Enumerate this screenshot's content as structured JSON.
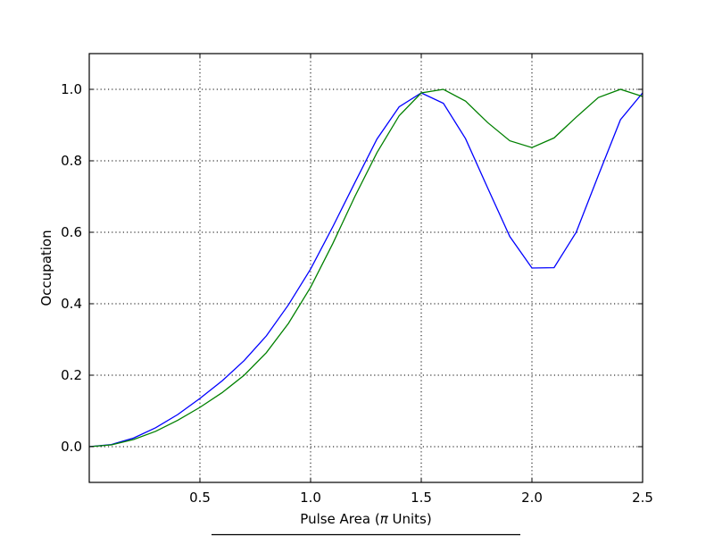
{
  "chart_data": {
    "type": "line",
    "title": "",
    "xlabel": "Pulse Area (",
    "xlabel_symbol": "π",
    "xlabel_suffix": " Units)",
    "ylabel": "Occupation",
    "xlim": [
      0.0,
      2.5
    ],
    "ylim": [
      -0.1,
      1.1
    ],
    "xticks": [
      0.5,
      1.0,
      1.5,
      2.0,
      2.5
    ],
    "xtick_labels": [
      "0.5",
      "1.0",
      "1.5",
      "2.0",
      "2.5"
    ],
    "yticks": [
      0.0,
      0.2,
      0.4,
      0.6,
      0.8,
      1.0
    ],
    "ytick_labels": [
      "0.0",
      "0.2",
      "0.4",
      "0.6",
      "0.8",
      "1.0"
    ],
    "grid": true,
    "x": [
      0.0,
      0.1,
      0.2,
      0.3,
      0.4,
      0.5,
      0.6,
      0.7,
      0.8,
      0.9,
      1.0,
      1.1,
      1.2,
      1.3,
      1.4,
      1.5,
      1.6,
      1.7,
      1.8,
      1.9,
      2.0,
      2.1,
      2.2,
      2.3,
      2.4,
      2.5
    ],
    "series": [
      {
        "color": "#0000ff",
        "values": [
          0.0,
          0.006,
          0.024,
          0.053,
          0.09,
          0.135,
          0.184,
          0.241,
          0.31,
          0.397,
          0.497,
          0.615,
          0.739,
          0.861,
          0.951,
          0.99,
          0.961,
          0.862,
          0.724,
          0.588,
          0.5,
          0.501,
          0.6,
          0.759,
          0.915,
          0.99
        ]
      },
      {
        "color": "#008000",
        "values": [
          0.0,
          0.005,
          0.02,
          0.043,
          0.074,
          0.11,
          0.151,
          0.2,
          0.263,
          0.345,
          0.446,
          0.568,
          0.7,
          0.823,
          0.926,
          0.99,
          1.0,
          0.967,
          0.907,
          0.856,
          0.837,
          0.864,
          0.922,
          0.977,
          1.0,
          0.98
        ]
      }
    ]
  }
}
